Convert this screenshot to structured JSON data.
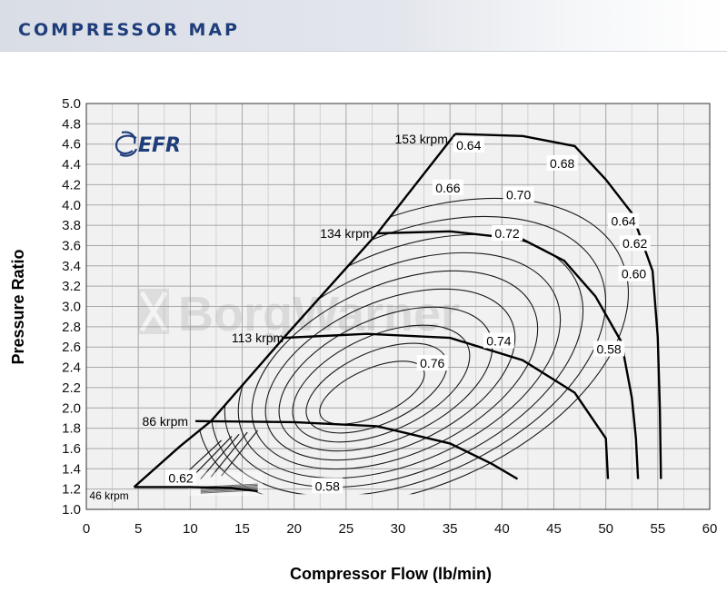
{
  "header": {
    "title": "COMPRESSOR MAP"
  },
  "logo": {
    "text": "EFR",
    "watermark": "BorgWarner"
  },
  "chart_data": {
    "type": "line",
    "title": "",
    "xlabel": "Compressor Flow (lb/min)",
    "ylabel": "Pressure Ratio",
    "xlim": [
      0,
      60
    ],
    "ylim": [
      1.0,
      5.0
    ],
    "grid": true,
    "xticks": [
      "0",
      "5",
      "10",
      "15",
      "20",
      "25",
      "30",
      "35",
      "40",
      "45",
      "50",
      "55",
      "60"
    ],
    "yticks": [
      "1.0",
      "1.2",
      "1.4",
      "1.6",
      "1.8",
      "2.0",
      "2.2",
      "2.4",
      "2.6",
      "2.8",
      "3.0",
      "3.2",
      "3.4",
      "3.6",
      "3.8",
      "4.0",
      "4.2",
      "4.4",
      "4.6",
      "4.8",
      "5.0"
    ],
    "surge_line": [
      [
        4.6,
        1.22
      ],
      [
        9,
        1.62
      ],
      [
        12,
        1.87
      ],
      [
        19,
        2.69
      ],
      [
        28,
        3.72
      ],
      [
        35.5,
        4.7
      ]
    ],
    "speed_lines": [
      {
        "label": "46 krpm",
        "points": [
          [
            4.6,
            1.22
          ],
          [
            10,
            1.22
          ],
          [
            14,
            1.21
          ],
          [
            16.5,
            1.18
          ]
        ]
      },
      {
        "label": "86 krpm",
        "points": [
          [
            10.5,
            1.87
          ],
          [
            20,
            1.86
          ],
          [
            28,
            1.82
          ],
          [
            35,
            1.65
          ],
          [
            39,
            1.45
          ],
          [
            41.5,
            1.3
          ]
        ]
      },
      {
        "label": "113 krpm",
        "points": [
          [
            19,
            2.69
          ],
          [
            27,
            2.73
          ],
          [
            35,
            2.69
          ],
          [
            42,
            2.47
          ],
          [
            47,
            2.15
          ],
          [
            50,
            1.7
          ],
          [
            50.2,
            1.3
          ]
        ]
      },
      {
        "label": "134 krpm",
        "points": [
          [
            28,
            3.72
          ],
          [
            35,
            3.74
          ],
          [
            42,
            3.66
          ],
          [
            46,
            3.45
          ],
          [
            49,
            3.1
          ],
          [
            51.5,
            2.65
          ],
          [
            52.5,
            2.1
          ],
          [
            52.9,
            1.7
          ],
          [
            53.1,
            1.3
          ]
        ]
      },
      {
        "label": "153 krpm",
        "points": [
          [
            35.5,
            4.7
          ],
          [
            42,
            4.68
          ],
          [
            47,
            4.58
          ],
          [
            50,
            4.25
          ],
          [
            52.5,
            3.92
          ],
          [
            54.5,
            3.35
          ],
          [
            55,
            2.7
          ],
          [
            55.2,
            2.0
          ],
          [
            55.3,
            1.3
          ]
        ]
      }
    ],
    "efficiency_labels": [
      {
        "label": "0.76",
        "x": 33.3,
        "y": 2.44
      },
      {
        "label": "0.74",
        "x": 39.7,
        "y": 2.66
      },
      {
        "label": "0.72",
        "x": 40.5,
        "y": 3.72
      },
      {
        "label": "0.70",
        "x": 41.6,
        "y": 4.1
      },
      {
        "label": "0.68",
        "x": 45.8,
        "y": 4.41
      },
      {
        "label": "0.66",
        "x": 34.8,
        "y": 4.17
      },
      {
        "label": "0.64",
        "x": 36.8,
        "y": 4.59
      },
      {
        "label": "0.64",
        "x": 51.7,
        "y": 3.84
      },
      {
        "label": "0.62",
        "x": 52.8,
        "y": 3.62
      },
      {
        "label": "0.60",
        "x": 52.7,
        "y": 3.32
      },
      {
        "label": "0.58",
        "x": 50.3,
        "y": 2.58
      },
      {
        "label": "0.58",
        "x": 23.2,
        "y": 1.23
      },
      {
        "label": "0.62",
        "x": 9.1,
        "y": 1.31
      }
    ]
  }
}
